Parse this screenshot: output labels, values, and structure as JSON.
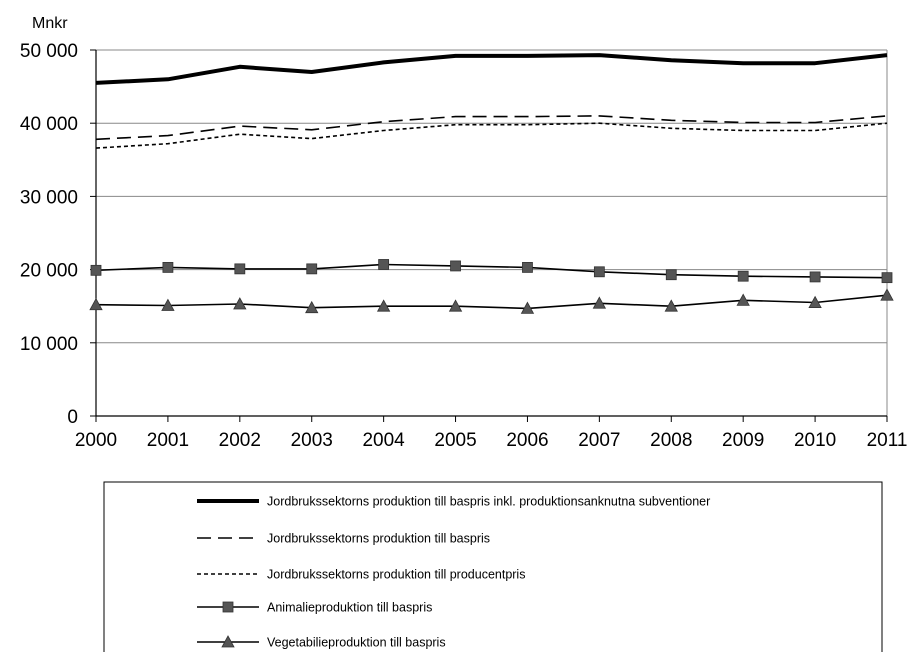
{
  "chart_data": {
    "type": "line",
    "unit_label": "Mnkr",
    "x": [
      "2000",
      "2001",
      "2002",
      "2003",
      "2004",
      "2005",
      "2006",
      "2007",
      "2008",
      "2009",
      "2010",
      "2011"
    ],
    "y_ticks": [
      "0",
      "10 000",
      "20 000",
      "30 000",
      "40 000",
      "50 000"
    ],
    "ylim": [
      0,
      50000
    ],
    "grid": "horizontal",
    "legend_position": "bottom",
    "series": [
      {
        "name": "Jordbrukssektorns produktion till baspris inkl. produktionsanknutna subventioner",
        "style": "thick",
        "color": "#000000",
        "values": [
          45500,
          46000,
          47700,
          47000,
          48300,
          49200,
          49200,
          49300,
          48600,
          48200,
          48200,
          49300
        ]
      },
      {
        "name": "Jordbrukssektorns produktion till baspris",
        "style": "long-dash",
        "color": "#000000",
        "values": [
          37800,
          38300,
          39600,
          39100,
          40200,
          40900,
          40900,
          41000,
          40400,
          40100,
          40100,
          41000
        ]
      },
      {
        "name": "Jordbrukssektorns produktion till producentpris",
        "style": "short-dash",
        "color": "#000000",
        "values": [
          36600,
          37200,
          38500,
          37900,
          39000,
          39800,
          39800,
          40000,
          39300,
          39000,
          39000,
          40000
        ]
      },
      {
        "name": "Animalieproduktion till baspris",
        "style": "square-marker",
        "color": "#000000",
        "marker_color": "#555555",
        "values": [
          19900,
          20300,
          20100,
          20100,
          20700,
          20500,
          20300,
          19700,
          19300,
          19100,
          19000,
          18900
        ]
      },
      {
        "name": "Vegetabilieproduktion till baspris",
        "style": "triangle-marker",
        "color": "#000000",
        "marker_color": "#555555",
        "values": [
          15200,
          15100,
          15300,
          14800,
          15000,
          15000,
          14700,
          15400,
          15000,
          15800,
          15500,
          16500
        ]
      }
    ]
  }
}
